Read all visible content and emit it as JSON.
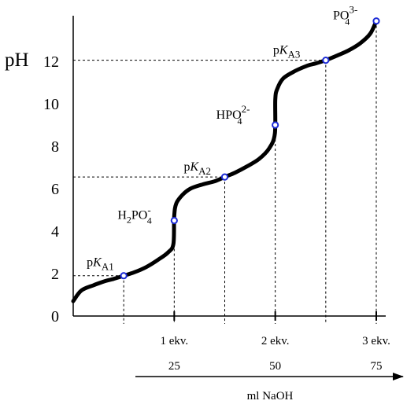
{
  "chart_data": {
    "type": "line",
    "ylabel": "pH",
    "xlabel": "ml NaOH",
    "ylim": [
      0,
      14
    ],
    "xlim": [
      0,
      82
    ],
    "y_ticks": [
      {
        "value": 0,
        "label": "0"
      },
      {
        "value": 2,
        "label": "2"
      },
      {
        "value": 4,
        "label": "4"
      },
      {
        "value": 6,
        "label": "6"
      },
      {
        "value": 8,
        "label": "8"
      },
      {
        "value": 10,
        "label": "10"
      },
      {
        "value": 12,
        "label": "12"
      }
    ],
    "x_ticks": [
      {
        "value": 25,
        "label": "1 ekv.",
        "volume": "25"
      },
      {
        "value": 50,
        "label": "2 ekv.",
        "volume": "50"
      },
      {
        "value": 75,
        "label": "3 ekv.",
        "volume": "75"
      }
    ],
    "series": [
      {
        "values": [
          [
            0,
            0.7
          ],
          [
            2,
            1.2
          ],
          [
            5,
            1.45
          ],
          [
            8,
            1.65
          ],
          [
            10,
            1.75
          ],
          [
            12.5,
            1.9
          ],
          [
            15,
            2.05
          ],
          [
            18,
            2.3
          ],
          [
            21,
            2.65
          ],
          [
            23.5,
            3.0
          ],
          [
            24.8,
            3.4
          ],
          [
            25.0,
            4.7
          ],
          [
            25.5,
            5.3
          ],
          [
            27,
            5.7
          ],
          [
            29,
            6.0
          ],
          [
            32,
            6.2
          ],
          [
            35,
            6.35
          ],
          [
            37.5,
            6.55
          ],
          [
            40,
            6.75
          ],
          [
            43,
            7.05
          ],
          [
            46,
            7.4
          ],
          [
            48.5,
            7.9
          ],
          [
            49.9,
            8.6
          ],
          [
            50.0,
            10.2
          ],
          [
            50.5,
            10.7
          ],
          [
            52,
            11.2
          ],
          [
            55,
            11.55
          ],
          [
            58,
            11.8
          ],
          [
            60,
            11.9
          ],
          [
            62.5,
            12.05
          ],
          [
            65,
            12.25
          ],
          [
            68,
            12.5
          ],
          [
            71,
            12.85
          ],
          [
            73.5,
            13.3
          ],
          [
            75,
            13.9
          ]
        ]
      }
    ],
    "marked_points": [
      {
        "x": 12.5,
        "y": 1.9,
        "label": "pK",
        "sub": "A1"
      },
      {
        "x": 25,
        "y": 4.5,
        "label": "H",
        "sub": "2",
        "mid": "PO",
        "sub2": "4",
        "sup": "-"
      },
      {
        "x": 37.5,
        "y": 6.55,
        "label": "pK",
        "sub": "A2"
      },
      {
        "x": 50,
        "y": 9.0,
        "label": "HPO",
        "sub": "4",
        "sup": "2-"
      },
      {
        "x": 62.5,
        "y": 12.05,
        "label": "pK",
        "sub": "A3"
      },
      {
        "x": 75,
        "y": 13.9,
        "label": "PO",
        "sub": "4",
        "sup": "3-"
      }
    ],
    "reference_lines": [
      {
        "x": 12.5,
        "y": 1.9
      },
      {
        "x": 37.5,
        "y": 6.55
      },
      {
        "x": 62.5,
        "y": 12.05
      },
      {
        "x": 25,
        "y": 4.5,
        "vertical_only": true
      },
      {
        "x": 50,
        "y": 9.0,
        "vertical_only": true
      },
      {
        "x": 75,
        "y": 13.9,
        "vertical_only": true
      }
    ],
    "grid": false,
    "legend": "none"
  }
}
